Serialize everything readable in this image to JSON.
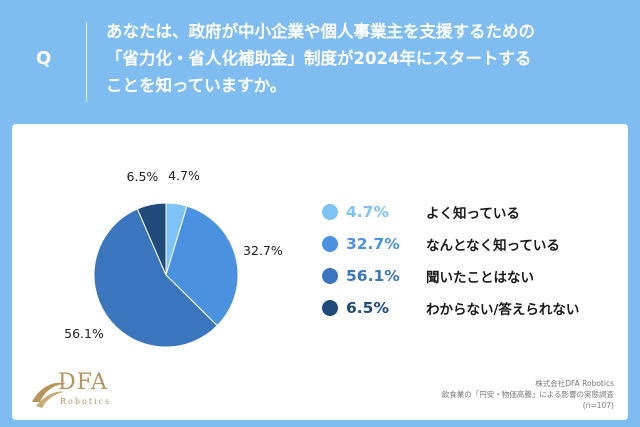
{
  "header": {
    "q_label": "Q",
    "question_lines": [
      "あなたは、政府が中小企業や個人事業主を支援するための",
      "「省力化・省人化補助金」制度が2024年にスタートする",
      "ことを知っていますか。"
    ]
  },
  "colors": {
    "background": "#7fbdf0",
    "slice_1": "#7ec3f5",
    "slice_2": "#4a92e0",
    "slice_3": "#3a75bd",
    "slice_4": "#204a7a",
    "logo_gold": "#b6945a"
  },
  "chart_data": {
    "type": "pie",
    "categories": [
      "よく知っている",
      "なんとなく知っている",
      "聞いたことはない",
      "わからない/答えられない"
    ],
    "values": [
      4.7,
      32.7,
      56.1,
      6.5
    ],
    "labels": [
      "4.7%",
      "32.7%",
      "56.1%",
      "6.5%"
    ],
    "start": "12 o'clock",
    "direction": "clockwise",
    "legend_placement": "right"
  },
  "legend": [
    {
      "value": "4.7%",
      "text": "よく知っている"
    },
    {
      "value": "32.7%",
      "text": "なんとなく知っている"
    },
    {
      "value": "56.1%",
      "text": "聞いたことはない"
    },
    {
      "value": "6.5%",
      "text": "わからない/答えられない"
    }
  ],
  "logo": {
    "name": "DFA",
    "sub": "Robotics",
    "icon": "dfa-swoosh-icon"
  },
  "source": {
    "company": "株式会社DFA Robotics",
    "survey": "飲食業の「円安・物価高騰」による影響の実態調査",
    "sample": "(n=107)"
  }
}
